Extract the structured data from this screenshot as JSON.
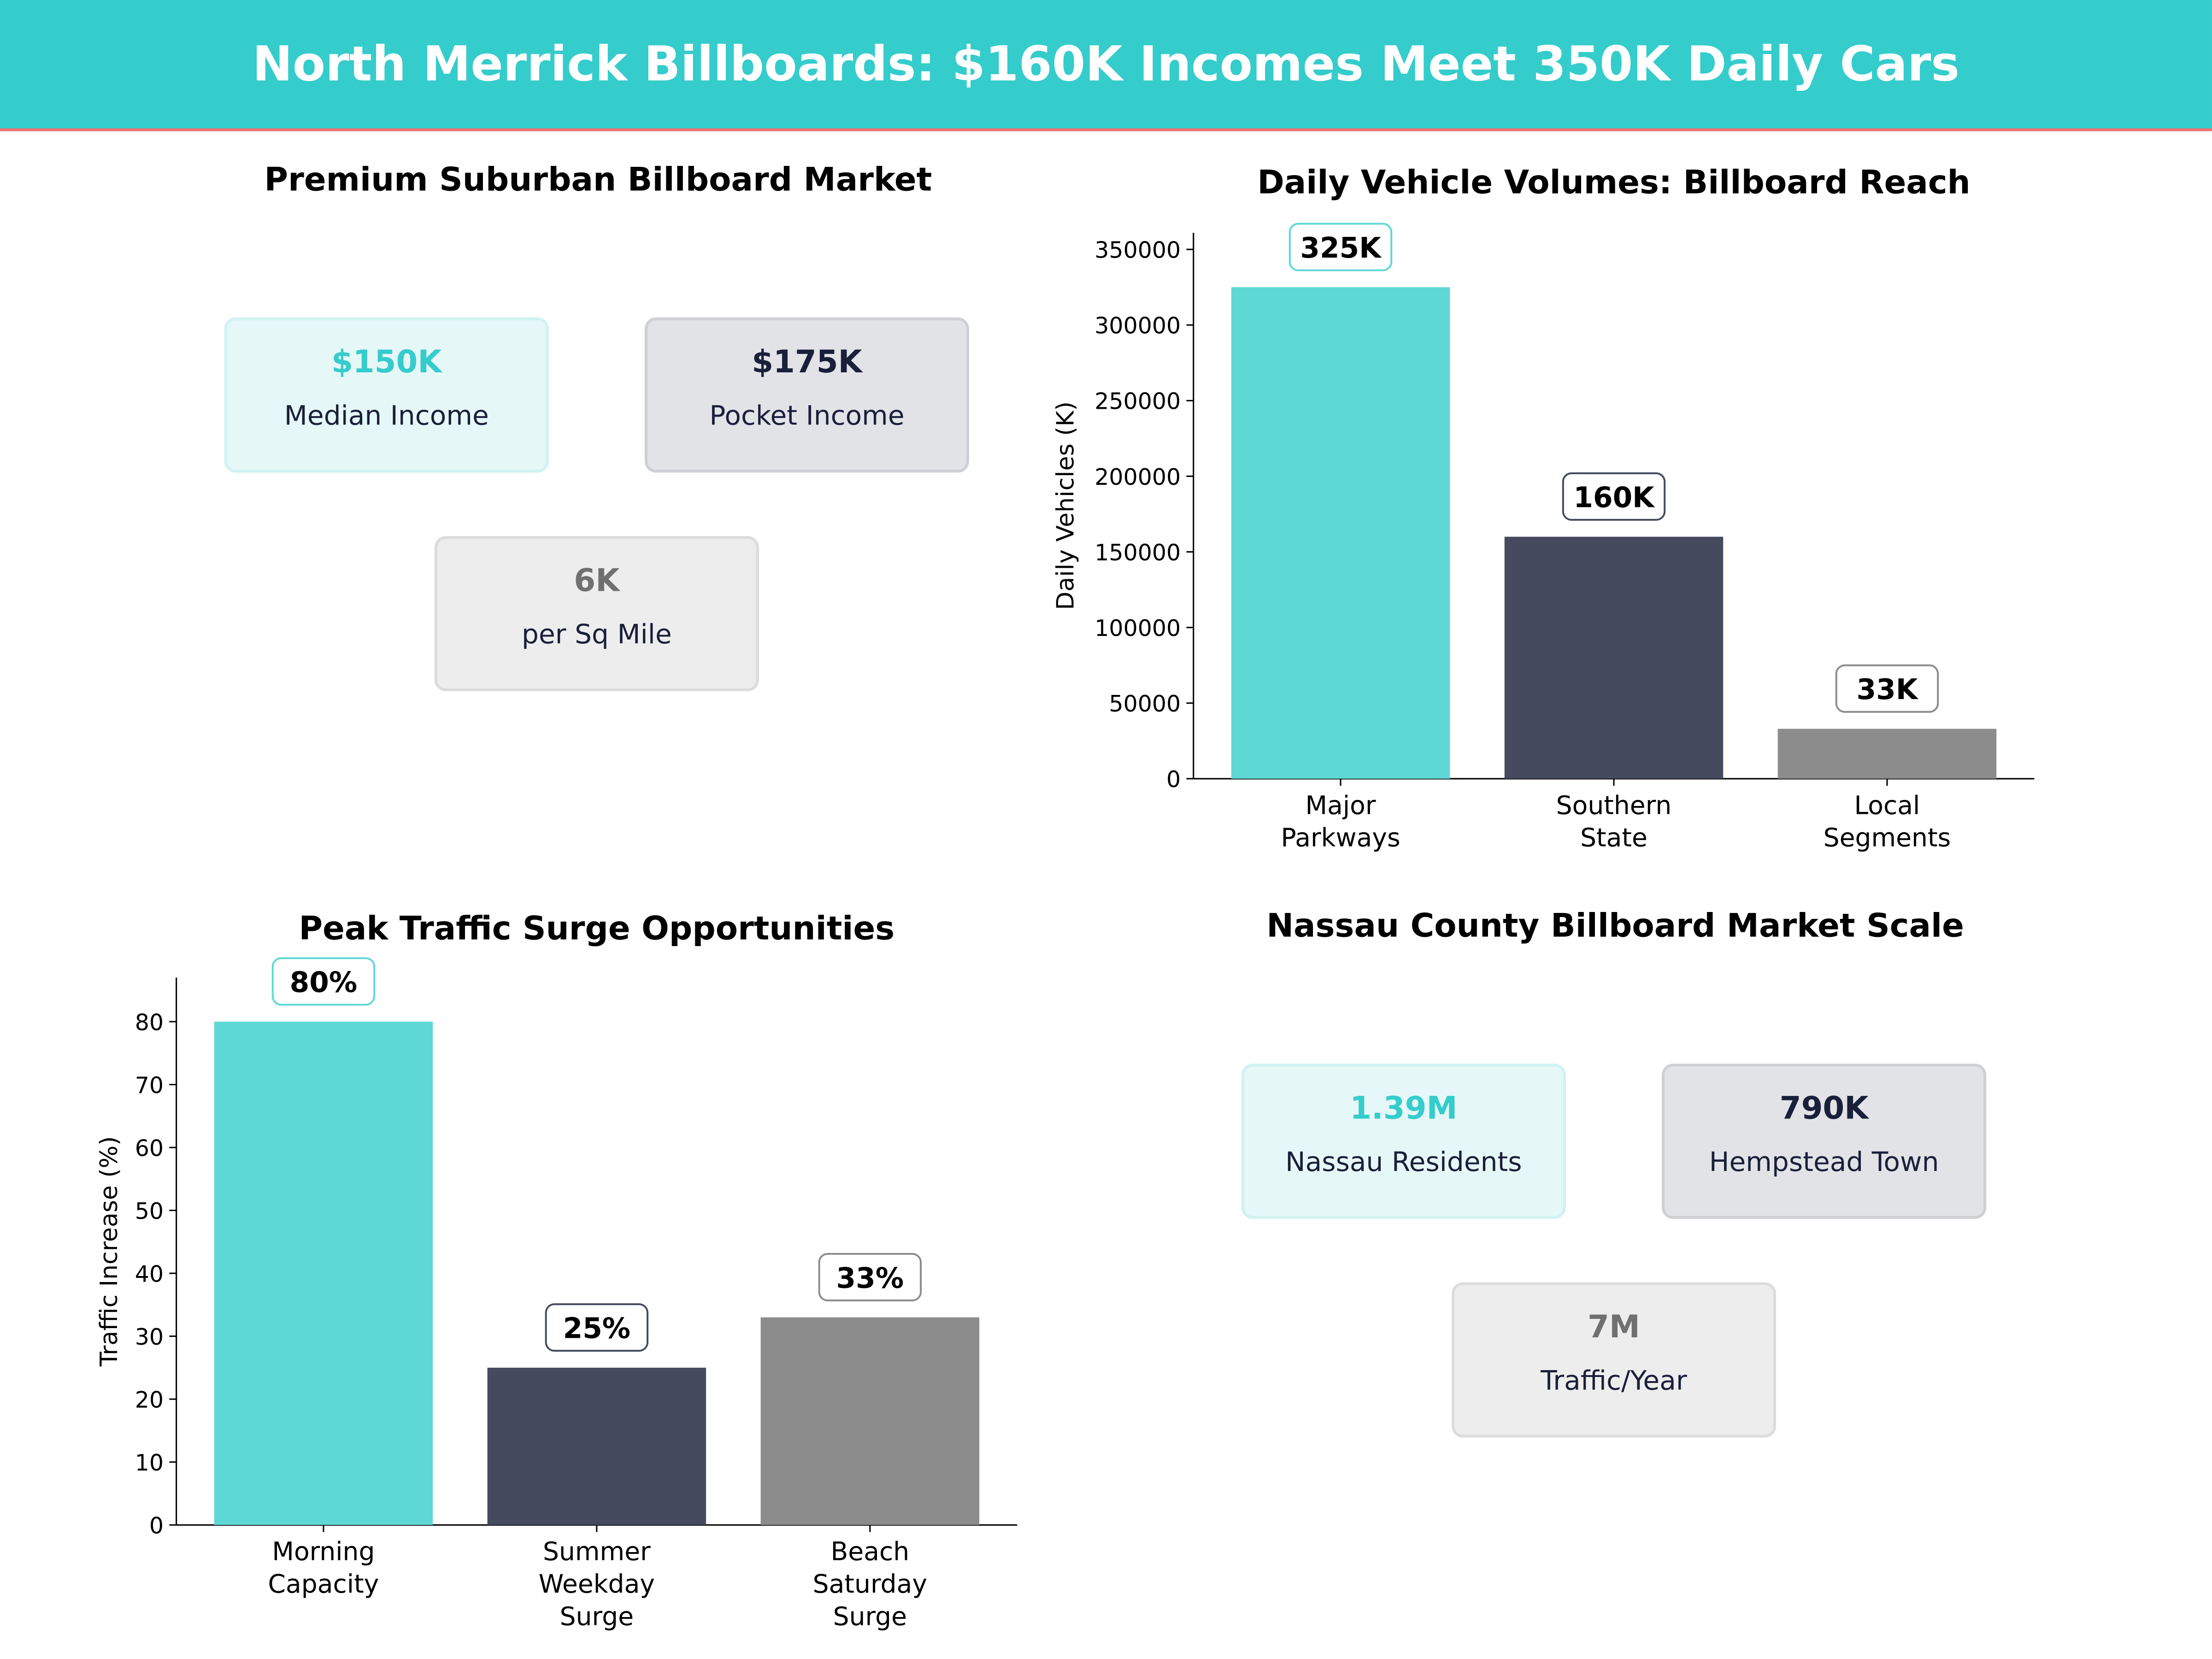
{
  "header": {
    "title": "North Merrick Billboards: $160K Incomes Meet 350K Daily Cars"
  },
  "panel1": {
    "title": "Premium Suburban Billboard Market",
    "cards": [
      {
        "value": "$150K",
        "label": "Median Income"
      },
      {
        "value": "$175K",
        "label": "Pocket Income"
      },
      {
        "value": "6K",
        "label": "per Sq Mile"
      }
    ]
  },
  "panel4": {
    "title": "Nassau County Billboard Market Scale",
    "cards": [
      {
        "value": "1.39M",
        "label": "Nassau Residents"
      },
      {
        "value": "790K",
        "label": "Hempstead Town"
      },
      {
        "value": "7M",
        "label": "Traffic/Year"
      }
    ]
  },
  "colors": {
    "teal": "#5ED8D5",
    "dark": "#454A5E",
    "gray": "#8C8C8C",
    "header": "#35CCCC",
    "accent_line": "#F07070"
  },
  "chart_data": [
    {
      "type": "bar",
      "title": "Daily Vehicle Volumes: Billboard Reach",
      "xlabel": "",
      "ylabel": "Daily Vehicles (K)",
      "categories": [
        "Major\nParkways",
        "Southern\nState",
        "Local\nSegments"
      ],
      "values": [
        325000,
        160000,
        33000
      ],
      "data_labels": [
        "325K",
        "160K",
        "33K"
      ],
      "yticks": [
        0,
        50000,
        100000,
        150000,
        200000,
        250000,
        300000,
        350000
      ],
      "ylim": [
        0,
        361000
      ],
      "grid": false,
      "colors": [
        "#5ED8D5",
        "#454A5E",
        "#8C8C8C"
      ]
    },
    {
      "type": "bar",
      "title": "Peak Traffic Surge Opportunities",
      "xlabel": "",
      "ylabel": "Traffic Increase (%)",
      "categories": [
        "Morning\nCapacity",
        "Summer\nWeekday\nSurge",
        "Beach\nSaturday\nSurge"
      ],
      "values": [
        80,
        25,
        33
      ],
      "data_labels": [
        "80%",
        "25%",
        "33%"
      ],
      "yticks": [
        0,
        10,
        20,
        30,
        40,
        50,
        60,
        70,
        80
      ],
      "ylim": [
        0,
        87
      ],
      "grid": false,
      "colors": [
        "#5ED8D5",
        "#454A5E",
        "#8C8C8C"
      ]
    }
  ]
}
